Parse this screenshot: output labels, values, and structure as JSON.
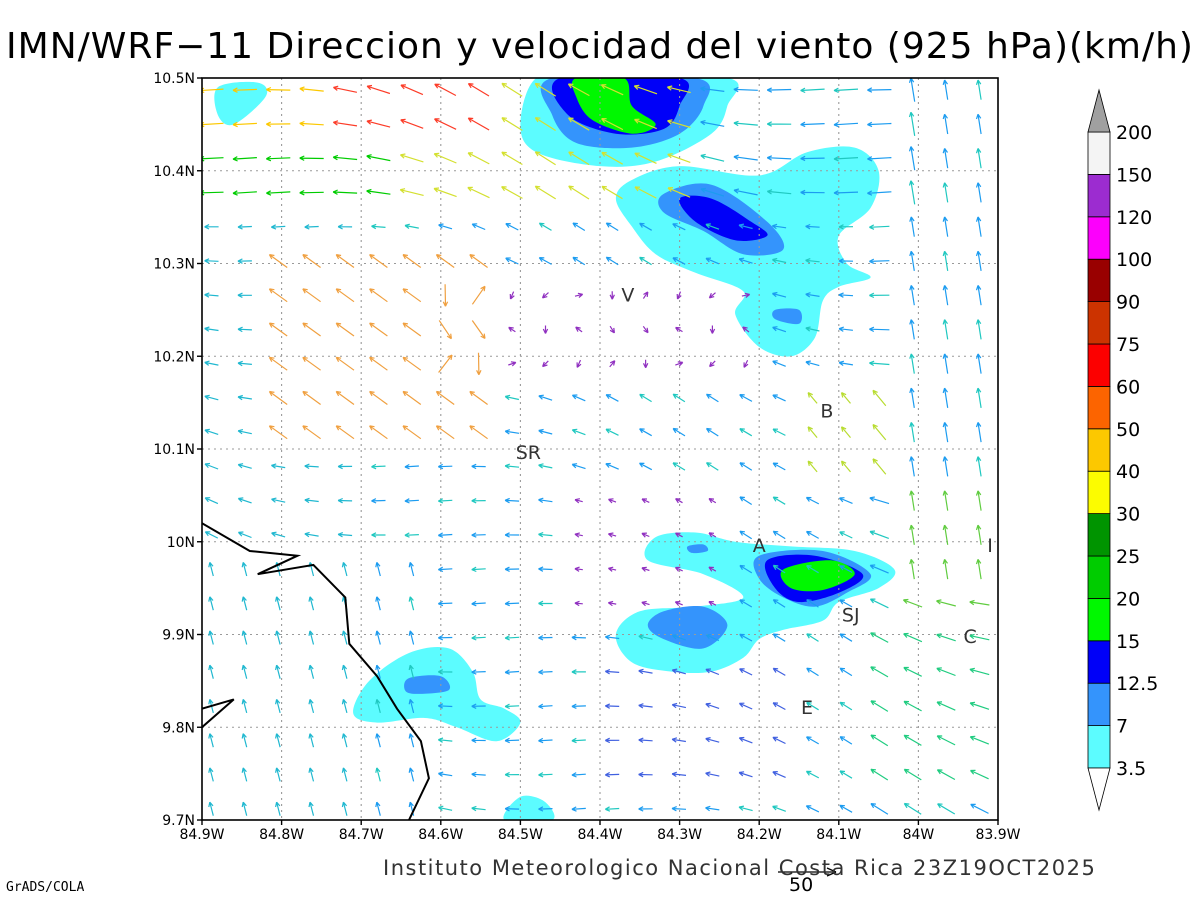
{
  "title": "IMN/WRF−11 Direccion y velocidad del viento (925 hPa)(km/h)",
  "footer": {
    "institution": "Instituto Meteorologico Nacional Costa Rica  23Z19OCT2025",
    "credit": "GrADS/COLA",
    "reference_vector_label": "50"
  },
  "map": {
    "lon_range": [
      -84.9,
      -83.9
    ],
    "lat_range": [
      9.7,
      10.5
    ],
    "grid": true,
    "x_tick_values": [
      -84.9,
      -84.8,
      -84.7,
      -84.6,
      -84.5,
      -84.4,
      -84.3,
      -84.2,
      -84.1,
      -84.0,
      -83.9
    ],
    "x_tick_labels": [
      "84.9W",
      "84.8W",
      "84.7W",
      "84.6W",
      "84.5W",
      "84.4W",
      "84.3W",
      "84.2W",
      "84.1W",
      "84W",
      "83.9W"
    ],
    "y_tick_values": [
      9.7,
      9.8,
      9.9,
      10.0,
      10.1,
      10.2,
      10.3,
      10.4,
      10.5
    ],
    "y_tick_labels": [
      "9.7N",
      "9.8N",
      "9.9N",
      "10N",
      "10.1N",
      "10.2N",
      "10.3N",
      "10.4N",
      "10.5N"
    ],
    "place_labels": [
      {
        "label": "V",
        "lon": -84.365,
        "lat": 10.265
      },
      {
        "label": "B",
        "lon": -84.115,
        "lat": 10.14
      },
      {
        "label": "SR",
        "lon": -84.49,
        "lat": 10.095
      },
      {
        "label": "A",
        "lon": -84.2,
        "lat": 9.995
      },
      {
        "label": "I",
        "lon": -83.91,
        "lat": 9.995
      },
      {
        "label": "SJ",
        "lon": -84.085,
        "lat": 9.92
      },
      {
        "label": "C",
        "lon": -83.935,
        "lat": 9.897
      },
      {
        "label": "E",
        "lon": -84.14,
        "lat": 9.82
      }
    ],
    "coastline": [
      [
        -84.9,
        10.02
      ],
      [
        -84.84,
        9.99
      ],
      [
        -84.78,
        9.985
      ],
      [
        -84.83,
        9.965
      ],
      [
        -84.76,
        9.975
      ],
      [
        -84.72,
        9.94
      ],
      [
        -84.715,
        9.89
      ],
      [
        -84.68,
        9.855
      ],
      [
        -84.655,
        9.82
      ],
      [
        -84.625,
        9.785
      ],
      [
        -84.615,
        9.745
      ],
      [
        -84.64,
        9.7
      ]
    ],
    "coastline_2": [
      [
        -84.9,
        9.82
      ],
      [
        -84.86,
        9.83
      ],
      [
        -84.9,
        9.8
      ]
    ]
  },
  "legend": {
    "labels": [
      "3.5",
      "7",
      "12.5",
      "15",
      "20",
      "25",
      "30",
      "40",
      "50",
      "60",
      "75",
      "90",
      "100",
      "120",
      "150",
      "200"
    ],
    "colors": [
      "#ffffff",
      "#5cfcff",
      "#3494fc",
      "#0000f8",
      "#00f800",
      "#00cc00",
      "#009400",
      "#fcfc00",
      "#fcc800",
      "#fc6400",
      "#fc0000",
      "#cc3300",
      "#990000",
      "#fc00fc",
      "#9c2cd0",
      "#f4f4f4"
    ],
    "top_triangle_color": "#a0a0a0",
    "bottom_triangle_color": "#ffffff"
  },
  "shading": [
    {
      "level": "3.5",
      "color": "#5cfcff",
      "polygons": [
        [
          [
            -84.42,
            10.5
          ],
          [
            -84.24,
            10.5
          ],
          [
            -84.24,
            10.47
          ],
          [
            -84.26,
            10.44
          ],
          [
            -84.33,
            10.41
          ],
          [
            -84.4,
            10.405
          ],
          [
            -84.48,
            10.42
          ],
          [
            -84.5,
            10.45
          ],
          [
            -84.48,
            10.5
          ]
        ],
        [
          [
            -84.36,
            10.39
          ],
          [
            -84.3,
            10.405
          ],
          [
            -84.2,
            10.395
          ],
          [
            -84.14,
            10.42
          ],
          [
            -84.08,
            10.425
          ],
          [
            -84.05,
            10.4
          ],
          [
            -84.06,
            10.36
          ],
          [
            -84.1,
            10.33
          ],
          [
            -84.09,
            10.3
          ],
          [
            -84.06,
            10.285
          ],
          [
            -84.1,
            10.275
          ],
          [
            -84.12,
            10.26
          ],
          [
            -84.13,
            10.22
          ],
          [
            -84.16,
            10.2
          ],
          [
            -84.2,
            10.21
          ],
          [
            -84.23,
            10.245
          ],
          [
            -84.22,
            10.27
          ],
          [
            -84.28,
            10.29
          ],
          [
            -84.33,
            10.31
          ],
          [
            -84.36,
            10.34
          ],
          [
            -84.38,
            10.37
          ]
        ],
        [
          [
            -84.88,
            10.49
          ],
          [
            -84.83,
            10.495
          ],
          [
            -84.82,
            10.48
          ],
          [
            -84.86,
            10.45
          ],
          [
            -84.88,
            10.46
          ]
        ],
        [
          [
            -84.33,
            10.005
          ],
          [
            -84.28,
            10.01
          ],
          [
            -84.23,
            10.0
          ],
          [
            -84.16,
            9.995
          ],
          [
            -84.08,
            9.99
          ],
          [
            -84.03,
            9.97
          ],
          [
            -84.05,
            9.95
          ],
          [
            -84.1,
            9.935
          ],
          [
            -84.12,
            9.915
          ],
          [
            -84.17,
            9.905
          ],
          [
            -84.2,
            9.895
          ],
          [
            -84.22,
            9.875
          ],
          [
            -84.26,
            9.86
          ],
          [
            -84.31,
            9.86
          ],
          [
            -84.36,
            9.87
          ],
          [
            -84.38,
            9.9
          ],
          [
            -84.35,
            9.925
          ],
          [
            -84.28,
            9.93
          ],
          [
            -84.22,
            9.94
          ],
          [
            -84.27,
            9.965
          ],
          [
            -84.34,
            9.98
          ]
        ],
        [
          [
            -84.64,
            9.88
          ],
          [
            -84.59,
            9.885
          ],
          [
            -84.56,
            9.86
          ],
          [
            -84.55,
            9.83
          ],
          [
            -84.52,
            9.82
          ],
          [
            -84.5,
            9.805
          ],
          [
            -84.53,
            9.785
          ],
          [
            -84.58,
            9.8
          ],
          [
            -84.62,
            9.81
          ],
          [
            -84.68,
            9.805
          ],
          [
            -84.71,
            9.815
          ],
          [
            -84.69,
            9.85
          ]
        ],
        [
          [
            -84.52,
            9.7
          ],
          [
            -84.46,
            9.7
          ],
          [
            -84.47,
            9.72
          ],
          [
            -84.5,
            9.725
          ]
        ]
      ]
    },
    {
      "level": "7",
      "color": "#3494fc",
      "polygons": [
        [
          [
            -84.46,
            10.5
          ],
          [
            -84.28,
            10.5
          ],
          [
            -84.27,
            10.47
          ],
          [
            -84.3,
            10.44
          ],
          [
            -84.36,
            10.425
          ],
          [
            -84.43,
            10.43
          ],
          [
            -84.46,
            10.46
          ]
        ],
        [
          [
            -84.32,
            10.375
          ],
          [
            -84.26,
            10.385
          ],
          [
            -84.19,
            10.345
          ],
          [
            -84.17,
            10.315
          ],
          [
            -84.22,
            10.31
          ],
          [
            -84.27,
            10.335
          ],
          [
            -84.32,
            10.355
          ]
        ],
        [
          [
            -84.18,
            10.25
          ],
          [
            -84.15,
            10.25
          ],
          [
            -84.15,
            10.235
          ],
          [
            -84.18,
            10.24
          ]
        ],
        [
          [
            -84.2,
            9.985
          ],
          [
            -84.12,
            9.99
          ],
          [
            -84.06,
            9.965
          ],
          [
            -84.09,
            9.945
          ],
          [
            -84.13,
            9.93
          ],
          [
            -84.17,
            9.94
          ],
          [
            -84.2,
            9.96
          ]
        ],
        [
          [
            -84.32,
            9.925
          ],
          [
            -84.27,
            9.93
          ],
          [
            -84.24,
            9.91
          ],
          [
            -84.27,
            9.885
          ],
          [
            -84.32,
            9.895
          ],
          [
            -84.34,
            9.91
          ]
        ],
        [
          [
            -84.29,
            9.995
          ],
          [
            -84.27,
            9.997
          ],
          [
            -84.265,
            9.99
          ],
          [
            -84.285,
            9.988
          ]
        ],
        [
          [
            -84.64,
            9.853
          ],
          [
            -84.6,
            9.855
          ],
          [
            -84.59,
            9.84
          ],
          [
            -84.63,
            9.836
          ],
          [
            -84.645,
            9.84
          ]
        ]
      ]
    },
    {
      "level": "12.5",
      "color": "#0000f8",
      "polygons": [
        [
          [
            -84.45,
            10.5
          ],
          [
            -84.3,
            10.5
          ],
          [
            -84.3,
            10.47
          ],
          [
            -84.32,
            10.445
          ],
          [
            -84.38,
            10.44
          ],
          [
            -84.44,
            10.46
          ]
        ],
        [
          [
            -84.3,
            10.37
          ],
          [
            -84.26,
            10.37
          ],
          [
            -84.21,
            10.345
          ],
          [
            -84.19,
            10.33
          ],
          [
            -84.23,
            10.325
          ],
          [
            -84.28,
            10.345
          ]
        ],
        [
          [
            -84.19,
            9.98
          ],
          [
            -84.13,
            9.985
          ],
          [
            -84.07,
            9.965
          ],
          [
            -84.1,
            9.945
          ],
          [
            -84.15,
            9.935
          ],
          [
            -84.18,
            9.95
          ]
        ]
      ]
    },
    {
      "level": "15",
      "color": "#00f800",
      "polygons": [
        [
          [
            -84.43,
            10.5
          ],
          [
            -84.37,
            10.5
          ],
          [
            -84.36,
            10.47
          ],
          [
            -84.33,
            10.45
          ],
          [
            -84.36,
            10.44
          ],
          [
            -84.41,
            10.455
          ],
          [
            -84.43,
            10.48
          ]
        ],
        [
          [
            -84.17,
            9.97
          ],
          [
            -84.11,
            9.98
          ],
          [
            -84.08,
            9.965
          ],
          [
            -84.12,
            9.948
          ],
          [
            -84.16,
            9.95
          ]
        ]
      ]
    }
  ]
}
